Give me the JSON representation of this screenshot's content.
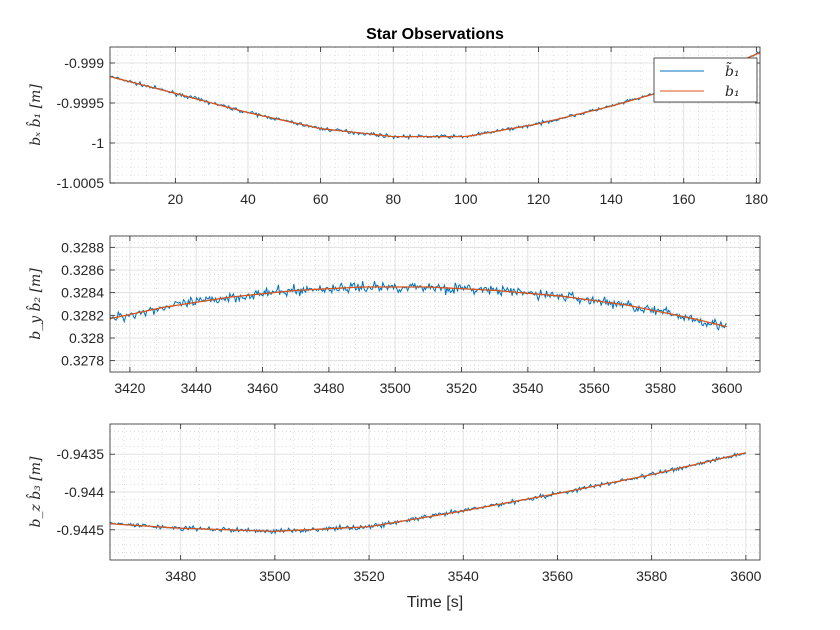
{
  "figure": {
    "title": "Star Observations",
    "xlabel": "Time [s]"
  },
  "legend": {
    "placement": "top-right",
    "entries": [
      {
        "label": "b̃₁",
        "color": "#0072BD"
      },
      {
        "label": "b₁",
        "color": "#D95319"
      }
    ]
  },
  "chart_data": [
    {
      "type": "line",
      "ylabel": "bₓ b̂₁ [m]",
      "xlim": [
        2,
        181
      ],
      "ylim": [
        -1.0005,
        -0.9988
      ],
      "xticks": [
        20,
        40,
        60,
        80,
        100,
        120,
        140,
        160,
        180
      ],
      "xtick_labels": [
        "20",
        "40",
        "60",
        "80",
        "100",
        "120",
        "140",
        "160",
        "180"
      ],
      "yticks": [
        -1.0005,
        -1,
        -0.9995,
        -0.999
      ],
      "ytick_labels": [
        "-1.0005",
        "-1",
        "-0.9995",
        "-0.999"
      ],
      "grid": true,
      "minor_grid": true,
      "series": [
        {
          "name": "b̃₁",
          "color": "#0072BD",
          "noise": 2.2e-05,
          "x": [
            2,
            20,
            40,
            60,
            80,
            100,
            120,
            140,
            160,
            181
          ],
          "y": [
            -0.99917,
            -0.99938,
            -0.99962,
            -0.99982,
            -0.99992,
            -0.99992,
            -0.99976,
            -0.99954,
            -0.99928,
            -0.99887
          ]
        },
        {
          "name": "b₁",
          "color": "#D95319",
          "x": [
            2,
            20,
            40,
            60,
            80,
            100,
            120,
            140,
            160,
            181
          ],
          "y": [
            -0.99917,
            -0.99938,
            -0.99962,
            -0.99982,
            -0.99992,
            -0.99992,
            -0.99976,
            -0.99954,
            -0.99928,
            -0.99887
          ]
        }
      ]
    },
    {
      "type": "line",
      "ylabel": "b_y b̂₂ [m]",
      "xlim": [
        3414,
        3610
      ],
      "ylim": [
        0.3277,
        0.3289
      ],
      "xticks": [
        3420,
        3440,
        3460,
        3480,
        3500,
        3520,
        3540,
        3560,
        3580,
        3600
      ],
      "xtick_labels": [
        "3420",
        "3440",
        "3460",
        "3480",
        "3500",
        "3520",
        "3540",
        "3560",
        "3580",
        "3600"
      ],
      "yticks": [
        0.3278,
        0.328,
        0.3282,
        0.3284,
        0.3286,
        0.3288
      ],
      "ytick_labels": [
        "0.3278",
        "0.328",
        "0.3282",
        "0.3284",
        "0.3286",
        "0.3288"
      ],
      "grid": true,
      "minor_grid": true,
      "series": [
        {
          "name": "b̃₁",
          "color": "#0072BD",
          "noise": 4.5e-05,
          "x": [
            3414,
            3430,
            3450,
            3470,
            3490,
            3510,
            3530,
            3550,
            3570,
            3590,
            3600
          ],
          "y": [
            0.32817,
            0.32827,
            0.32836,
            0.32842,
            0.32845,
            0.32845,
            0.32842,
            0.32837,
            0.32829,
            0.32817,
            0.3281
          ]
        },
        {
          "name": "b₁",
          "color": "#D95319",
          "x": [
            3414,
            3430,
            3450,
            3470,
            3490,
            3510,
            3530,
            3550,
            3570,
            3590,
            3600
          ],
          "y": [
            0.32817,
            0.32827,
            0.32836,
            0.32842,
            0.32845,
            0.32845,
            0.32842,
            0.32837,
            0.32829,
            0.32817,
            0.3281
          ]
        }
      ]
    },
    {
      "type": "line",
      "ylabel": "b_z b̂₃ [m]",
      "xlim": [
        3465,
        3603
      ],
      "ylim": [
        -0.9449,
        -0.9431
      ],
      "xticks": [
        3480,
        3500,
        3520,
        3540,
        3560,
        3580,
        3600
      ],
      "xtick_labels": [
        "3480",
        "3500",
        "3520",
        "3540",
        "3560",
        "3580",
        "3600"
      ],
      "yticks": [
        -0.9445,
        -0.944,
        -0.9435
      ],
      "ytick_labels": [
        "-0.9445",
        "-0.944",
        "-0.9435"
      ],
      "grid": true,
      "minor_grid": true,
      "series": [
        {
          "name": "b̃₁",
          "color": "#0072BD",
          "noise": 3.2e-05,
          "x": [
            3465,
            3480,
            3500,
            3520,
            3540,
            3560,
            3580,
            3600
          ],
          "y": [
            -0.94442,
            -0.94448,
            -0.94452,
            -0.94446,
            -0.94425,
            -0.94402,
            -0.94377,
            -0.94348
          ]
        },
        {
          "name": "b₁",
          "color": "#D95319",
          "x": [
            3465,
            3480,
            3500,
            3520,
            3540,
            3560,
            3580,
            3600
          ],
          "y": [
            -0.94442,
            -0.94448,
            -0.94452,
            -0.94446,
            -0.94425,
            -0.94402,
            -0.94377,
            -0.94348
          ]
        }
      ]
    }
  ]
}
